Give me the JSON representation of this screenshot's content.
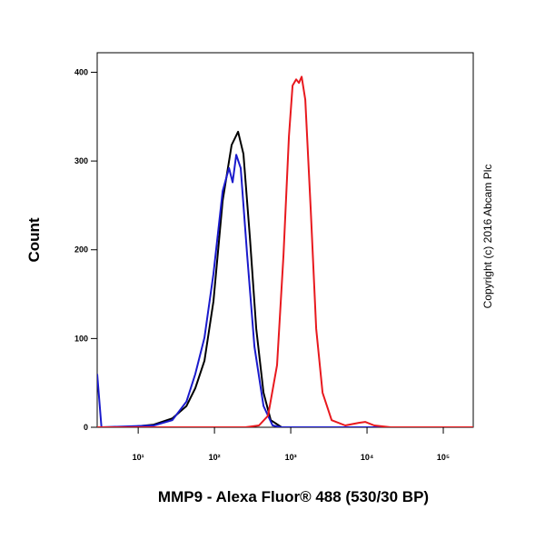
{
  "chart_data": {
    "type": "line",
    "x_label": "MMP9 - Alexa Fluor® 488 (530/30 BP)",
    "y_label": "Count",
    "annotation": "Copyright (c) 2016 Abcam Plc",
    "x_log": true,
    "xlim": [
      2.9,
      247000
    ],
    "ylim": [
      0,
      422
    ],
    "xticks": [
      {
        "value": 10,
        "label": "10¹"
      },
      {
        "value": 100,
        "label": "10²"
      },
      {
        "value": 1000,
        "label": "10³"
      },
      {
        "value": 10000,
        "label": "10⁴"
      },
      {
        "value": 100000,
        "label": "10⁵"
      }
    ],
    "yticks": [
      0,
      100,
      200,
      300,
      400
    ],
    "series": [
      {
        "color": "#000000",
        "x": [
          2.9,
          7.2,
          16,
          28,
          43,
          56,
          74,
          97,
          128,
          168,
          204,
          240,
          291,
          353,
          440,
          547,
          760,
          247000
        ],
        "values": [
          0,
          0,
          3,
          10,
          24,
          44,
          75,
          142,
          255,
          318,
          333,
          308,
          214,
          111,
          39,
          8,
          0,
          0
        ]
      },
      {
        "color": "#1a1acc",
        "x": [
          2.9,
          3.3,
          16,
          28,
          43,
          56,
          74,
          97,
          128,
          155,
          173,
          193,
          221,
          268,
          334,
          440,
          578,
          760,
          247000
        ],
        "values": [
          60,
          0,
          2,
          8,
          29,
          60,
          101,
          173,
          266,
          292,
          276,
          307,
          292,
          194,
          91,
          24,
          2,
          0,
          0
        ]
      },
      {
        "color": "#e8191e",
        "x": [
          2.9,
          254,
          383,
          504,
          662,
          803,
          946,
          1057,
          1178,
          1279,
          1390,
          1550,
          1828,
          2154,
          2610,
          3436,
          5180,
          7810,
          9460,
          12450,
          20400,
          247000
        ],
        "values": [
          0,
          0,
          2,
          13,
          70,
          194,
          328,
          385,
          392,
          388,
          395,
          369,
          245,
          111,
          39,
          8,
          2,
          5,
          6,
          2,
          0,
          0
        ]
      }
    ]
  }
}
